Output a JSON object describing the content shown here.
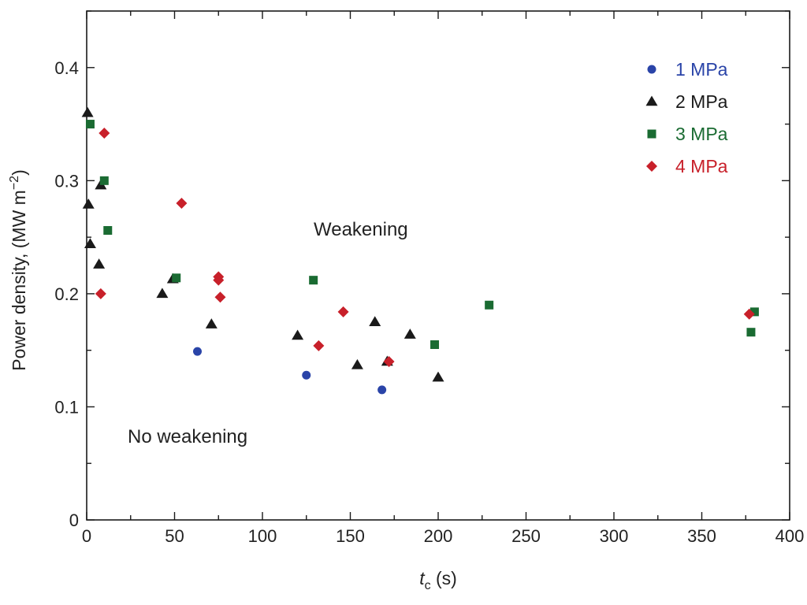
{
  "chart_data": {
    "type": "scatter",
    "xlabel": {
      "italic": "t",
      "sub": "c",
      "rest": " (s)"
    },
    "ylabel": {
      "main": "Power density, (MW m",
      "sup": "−2",
      "close": ")"
    },
    "xlim": [
      0,
      400
    ],
    "ylim": [
      0,
      0.45
    ],
    "x_ticks": [
      0,
      50,
      100,
      150,
      200,
      250,
      300,
      350,
      400
    ],
    "x_tick_labels": [
      "0",
      "50",
      "100",
      "150",
      "200",
      "250",
      "300",
      "350",
      "400"
    ],
    "y_ticks": [
      0,
      0.1,
      0.2,
      0.3,
      0.4
    ],
    "y_tick_labels": [
      "0",
      "0.1",
      "0.2",
      "0.3",
      "0.4"
    ],
    "grid": false,
    "legend_position": "top-right",
    "annotations": [
      "Weakening",
      "No weakening"
    ],
    "series": [
      {
        "name": "1 MPa",
        "marker": "circle",
        "color": "#2a44a8",
        "points": [
          [
            63,
            0.149
          ],
          [
            125,
            0.128
          ],
          [
            168,
            0.115
          ]
        ]
      },
      {
        "name": "2 MPa",
        "marker": "triangle",
        "color": "#1a1a1a",
        "points": [
          [
            0.5,
            0.36
          ],
          [
            1,
            0.279
          ],
          [
            2,
            0.244
          ],
          [
            7,
            0.226
          ],
          [
            8,
            0.296
          ],
          [
            43,
            0.2
          ],
          [
            49,
            0.213
          ],
          [
            71,
            0.173
          ],
          [
            120,
            0.163
          ],
          [
            154,
            0.137
          ],
          [
            164,
            0.175
          ],
          [
            171,
            0.14
          ],
          [
            184,
            0.164
          ],
          [
            200,
            0.126
          ]
        ]
      },
      {
        "name": "3 MPa",
        "marker": "square",
        "color": "#1a6b32",
        "points": [
          [
            2,
            0.35
          ],
          [
            10,
            0.3
          ],
          [
            12,
            0.256
          ],
          [
            51,
            0.214
          ],
          [
            129,
            0.212
          ],
          [
            198,
            0.155
          ],
          [
            229,
            0.19
          ],
          [
            378,
            0.166
          ],
          [
            380,
            0.184
          ]
        ]
      },
      {
        "name": "4 MPa",
        "marker": "diamond",
        "color": "#c8202a",
        "points": [
          [
            8,
            0.2
          ],
          [
            10,
            0.342
          ],
          [
            54,
            0.28
          ],
          [
            75,
            0.215
          ],
          [
            75,
            0.212
          ],
          [
            76,
            0.197
          ],
          [
            132,
            0.154
          ],
          [
            146,
            0.184
          ],
          [
            172,
            0.14
          ],
          [
            377,
            0.182
          ]
        ]
      }
    ]
  }
}
